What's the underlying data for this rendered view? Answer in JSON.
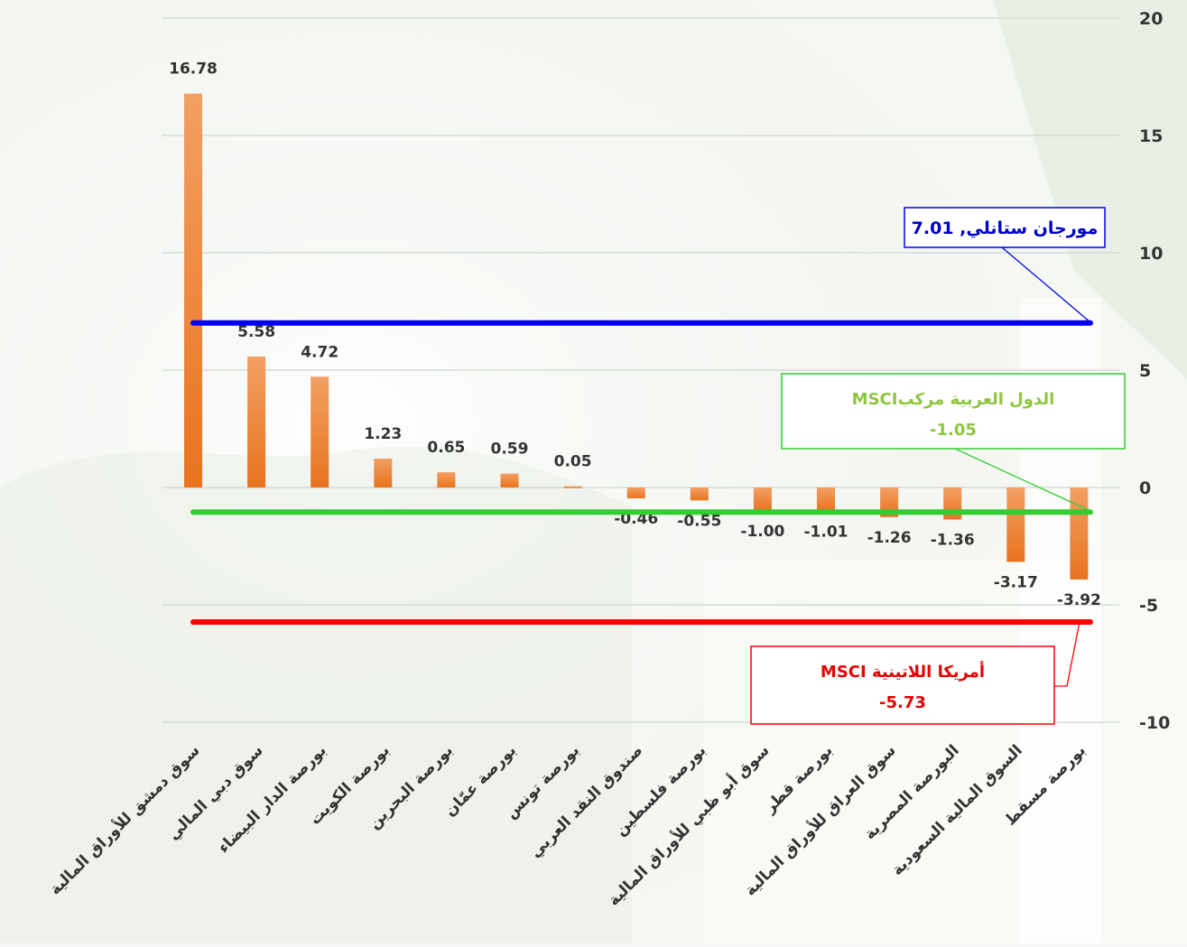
{
  "chart_data": {
    "type": "bar",
    "title": "",
    "xlabel": "",
    "ylabel": "",
    "ylim": [
      -10,
      20
    ],
    "yticks": [
      20,
      15,
      10,
      5,
      0,
      -5,
      -10
    ],
    "grid": true,
    "categories": [
      "سوق دمشق للأوراق المالية",
      "سوق دبي المالي",
      "بورصة الدار البيضاء",
      "بورصة الكويت",
      "بورصة البحرين",
      "بورصة عمّان",
      "بورصة تونس",
      "صندوق النقد العربي",
      "بورصة فلسطين",
      "سوق أبو ظبي للأوراق المالية",
      "بورصة قطر",
      "سوق العراق للأوراق المالية",
      "البورصة المصرية",
      "السوق المالية السعودية",
      "بورصة مسقط"
    ],
    "values": [
      16.78,
      5.58,
      4.72,
      1.23,
      0.65,
      0.59,
      0.05,
      -0.46,
      -0.55,
      -1.0,
      -1.01,
      -1.26,
      -1.36,
      -3.17,
      -3.92
    ],
    "value_labels": [
      "16.78",
      "5.58",
      "4.72",
      "1.23",
      "0.65",
      "0.59",
      "0.05",
      "-0.46",
      "-0.55",
      "-1.00",
      "-1.01",
      "-1.26",
      "-1.36",
      "-3.17",
      "-3.92"
    ],
    "reference_lines": [
      {
        "name": "مورجان ستانلي",
        "value": 7.01,
        "label_text": "مورجان ستانلي, 7.01",
        "color": "#0000ee",
        "label_color": "#0000cc"
      },
      {
        "name": "MSCIالدول العربية مركب",
        "value": -1.05,
        "label_text": "MSCIالدول العربية مركب",
        "value_text": "-1.05",
        "color": "#33cc33",
        "label_color": "#8dc63f"
      },
      {
        "name": "MSCI أمريكا اللاتينية",
        "value": -5.73,
        "label_text": "MSCI أمريكا اللاتينية",
        "value_text": "-5.73",
        "color": "#ff0000",
        "label_color": "#e60000"
      }
    ],
    "colors": {
      "bar_top": "#f2a063",
      "bar_bottom": "#e8731f",
      "grid": "#cfd6cf",
      "text": "#333333"
    }
  }
}
